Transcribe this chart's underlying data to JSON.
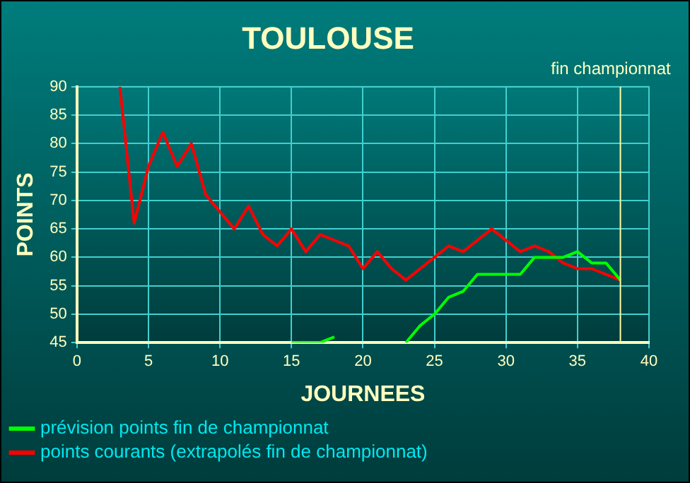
{
  "chart_data": {
    "type": "line",
    "title": "TOULOUSE",
    "xlabel": "JOURNEES",
    "ylabel": "POINTS",
    "x": [
      3,
      4,
      5,
      6,
      7,
      8,
      9,
      10,
      11,
      12,
      13,
      14,
      15,
      16,
      17,
      18,
      19,
      20,
      21,
      22,
      23,
      24,
      25,
      26,
      27,
      28,
      29,
      30,
      31,
      32,
      33,
      34,
      35,
      36,
      37,
      38
    ],
    "series": [
      {
        "name": "prévision points fin de championnat",
        "color": "#00ff00",
        "x": [
          15,
          16,
          17,
          18,
          19,
          20,
          21,
          22,
          23,
          24,
          25,
          26,
          27,
          28,
          29,
          30,
          31,
          32,
          33,
          34,
          35,
          36,
          37,
          38
        ],
        "values": [
          45,
          45,
          45,
          46,
          null,
          null,
          null,
          null,
          45,
          48,
          50,
          53,
          54,
          57,
          57,
          57,
          57,
          60,
          60,
          60,
          61,
          59,
          59,
          56
        ]
      },
      {
        "name": "points courants (extrapolés fin de championnat)",
        "color": "#ff0000",
        "values": [
          90,
          66,
          76,
          82,
          76,
          80,
          71,
          68,
          65,
          69,
          64,
          62,
          65,
          61,
          64,
          63,
          62,
          58,
          61,
          58,
          56,
          58,
          60,
          62,
          61,
          63,
          65,
          63,
          61,
          62,
          61,
          59,
          58,
          58,
          57,
          56
        ]
      }
    ],
    "xlim": [
      0,
      40
    ],
    "xticks": [
      0,
      5,
      10,
      15,
      20,
      25,
      30,
      35,
      40
    ],
    "ylim": [
      45,
      90
    ],
    "yticks": [
      45,
      50,
      55,
      60,
      65,
      70,
      75,
      80,
      85,
      90
    ],
    "grid": true,
    "legend": "bottom",
    "marker": "none",
    "line_style": "solid",
    "ref_lines": [
      {
        "axis": "x",
        "value": 38,
        "label": "fin championnat",
        "color": "#ffffa0"
      }
    ]
  }
}
